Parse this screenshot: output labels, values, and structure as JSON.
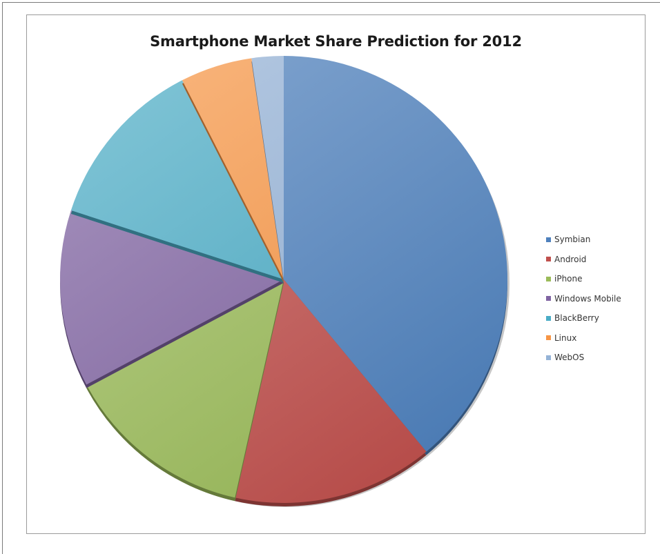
{
  "chart_data": {
    "type": "pie",
    "title": "Smartphone Market Share Prediction for 2012",
    "legend_position": "right",
    "start_angle_deg": 0,
    "direction": "clockwise",
    "slices": [
      {
        "label": "Symbian",
        "value": 39.0,
        "color": "#4f81bd"
      },
      {
        "label": "Android",
        "value": 14.5,
        "color": "#c0504d"
      },
      {
        "label": "iPhone",
        "value": 13.7,
        "color": "#9bbb59"
      },
      {
        "label": "Windows Mobile",
        "value": 12.8,
        "color": "#8064a2"
      },
      {
        "label": "BlackBerry",
        "value": 12.5,
        "color": "#4bacc6"
      },
      {
        "label": "Linux",
        "value": 5.2,
        "color": "#f79646"
      },
      {
        "label": "WebOS",
        "value": 2.3,
        "color": "#95b3d7"
      }
    ]
  }
}
